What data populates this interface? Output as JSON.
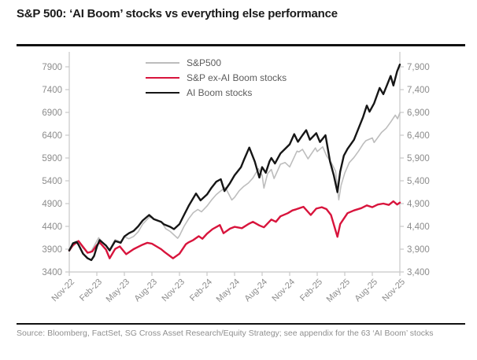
{
  "title": "S&P 500: ‘AI Boom’ stocks vs everything else performance",
  "source": "Source: Bloomberg, FactSet, SG Cross Asset Research/Equity Strategy; see appendix for the 63 ‘AI Boom’ stocks",
  "colors": {
    "rule": "#111111",
    "axis": "#c8c8c8",
    "tick_label": "#8c8c8c",
    "line_gray": "#bdbdbd",
    "line_red": "#d8143c",
    "line_black": "#161616"
  },
  "chart_data": {
    "type": "line",
    "title": "S&P 500: ‘AI Boom’ stocks vs everything else performance",
    "x_unit": "months since Nov-2022",
    "xlim": [
      0,
      36
    ],
    "ylim": [
      3400,
      7900
    ],
    "grid": false,
    "legend_position": "top-center-inside",
    "x_tick_positions": [
      0,
      3,
      6,
      9,
      12,
      15,
      18,
      21,
      24,
      27,
      30,
      33,
      36
    ],
    "x_tick_labels": [
      "Nov-22",
      "Feb-23",
      "May-23",
      "Aug-23",
      "Nov-23",
      "Feb-24",
      "May-24",
      "Aug-24",
      "Nov-24",
      "Feb-25",
      "May-25",
      "Aug-25",
      "Nov-25"
    ],
    "y_ticks_left": [
      "3400",
      "3900",
      "4400",
      "4900",
      "5400",
      "5900",
      "6400",
      "6900",
      "7400",
      "7900"
    ],
    "y_tick_values": [
      3400,
      3900,
      4400,
      4900,
      5400,
      5900,
      6400,
      6900,
      7400,
      7900
    ],
    "y_ticks_right": [
      "3,400",
      "3,900",
      "4,400",
      "4,900",
      "5,400",
      "5,900",
      "6,400",
      "6,900",
      "7,400",
      "7,900"
    ],
    "series": [
      {
        "name": "S&P500",
        "color": "#bdbdbd",
        "width": 1.6,
        "points": [
          [
            0,
            3870
          ],
          [
            0.3,
            3950
          ],
          [
            0.7,
            4020
          ],
          [
            1,
            4080
          ],
          [
            1.5,
            3920
          ],
          [
            2,
            3840
          ],
          [
            2.3,
            3820
          ],
          [
            3,
            4077
          ],
          [
            3.2,
            4150
          ],
          [
            4,
            3970
          ],
          [
            4.4,
            3900
          ],
          [
            5,
            4109
          ],
          [
            5.6,
            4060
          ],
          [
            6,
            4169
          ],
          [
            6.5,
            4130
          ],
          [
            7,
            4180
          ],
          [
            7.5,
            4280
          ],
          [
            8,
            4450
          ],
          [
            8.7,
            4600
          ],
          [
            9,
            4589
          ],
          [
            9.5,
            4530
          ],
          [
            10,
            4508
          ],
          [
            10.5,
            4350
          ],
          [
            11,
            4288
          ],
          [
            11.8,
            4140
          ],
          [
            12,
            4194
          ],
          [
            12.5,
            4400
          ],
          [
            13,
            4568
          ],
          [
            13.5,
            4700
          ],
          [
            14,
            4770
          ],
          [
            14.4,
            4720
          ],
          [
            15,
            4846
          ],
          [
            15.5,
            4980
          ],
          [
            16,
            5096
          ],
          [
            16.5,
            5180
          ],
          [
            17,
            5254
          ],
          [
            17.7,
            4980
          ],
          [
            18,
            5036
          ],
          [
            18.5,
            5180
          ],
          [
            19,
            5278
          ],
          [
            19.5,
            5350
          ],
          [
            20,
            5460
          ],
          [
            20.6,
            5667
          ],
          [
            21,
            5522
          ],
          [
            21.2,
            5240
          ],
          [
            21.6,
            5560
          ],
          [
            22,
            5648
          ],
          [
            22.3,
            5450
          ],
          [
            23,
            5762
          ],
          [
            23.5,
            5800
          ],
          [
            24,
            5705
          ],
          [
            24.8,
            6050
          ],
          [
            25,
            6032
          ],
          [
            25.4,
            6090
          ],
          [
            26,
            5882
          ],
          [
            26.8,
            6120
          ],
          [
            27,
            6041
          ],
          [
            27.6,
            6144
          ],
          [
            28,
            5955
          ],
          [
            28.6,
            5770
          ],
          [
            29,
            5612
          ],
          [
            29.35,
            4983
          ],
          [
            29.6,
            5300
          ],
          [
            30,
            5569
          ],
          [
            30.5,
            5800
          ],
          [
            31,
            5912
          ],
          [
            31.5,
            6050
          ],
          [
            32,
            6205
          ],
          [
            32.3,
            6280
          ],
          [
            33,
            6340
          ],
          [
            33.2,
            6240
          ],
          [
            34,
            6460
          ],
          [
            34.5,
            6550
          ],
          [
            35,
            6688
          ],
          [
            35.5,
            6840
          ],
          [
            35.75,
            6760
          ],
          [
            36,
            6890
          ]
        ]
      },
      {
        "name": "S&P ex-AI Boom stocks",
        "color": "#d8143c",
        "width": 2.4,
        "points": [
          [
            0,
            3870
          ],
          [
            0.4,
            3990
          ],
          [
            1,
            4080
          ],
          [
            1.5,
            3950
          ],
          [
            2,
            3820
          ],
          [
            2.5,
            3850
          ],
          [
            3,
            3990
          ],
          [
            3.3,
            4050
          ],
          [
            4,
            3890
          ],
          [
            4.4,
            3700
          ],
          [
            5,
            3905
          ],
          [
            5.5,
            3960
          ],
          [
            6.2,
            3790
          ],
          [
            7,
            3900
          ],
          [
            7.5,
            3950
          ],
          [
            8,
            4000
          ],
          [
            8.5,
            4040
          ],
          [
            9,
            4020
          ],
          [
            10,
            3900
          ],
          [
            10.4,
            3835
          ],
          [
            11.3,
            3700
          ],
          [
            12,
            3800
          ],
          [
            12.7,
            4010
          ],
          [
            13,
            4050
          ],
          [
            13.5,
            4100
          ],
          [
            14.1,
            4185
          ],
          [
            14.5,
            4130
          ],
          [
            15,
            4240
          ],
          [
            15.6,
            4340
          ],
          [
            16.4,
            4430
          ],
          [
            16.8,
            4250
          ],
          [
            17.5,
            4350
          ],
          [
            18,
            4390
          ],
          [
            18.8,
            4360
          ],
          [
            19.5,
            4450
          ],
          [
            20,
            4500
          ],
          [
            20.7,
            4420
          ],
          [
            21.2,
            4380
          ],
          [
            22,
            4550
          ],
          [
            22.5,
            4500
          ],
          [
            23,
            4620
          ],
          [
            23.8,
            4690
          ],
          [
            24.3,
            4750
          ],
          [
            24.7,
            4775
          ],
          [
            25.5,
            4830
          ],
          [
            26.3,
            4650
          ],
          [
            26.9,
            4790
          ],
          [
            27.5,
            4820
          ],
          [
            28,
            4780
          ],
          [
            28.5,
            4650
          ],
          [
            29.2,
            4170
          ],
          [
            29.5,
            4450
          ],
          [
            30.3,
            4690
          ],
          [
            31,
            4750
          ],
          [
            31.8,
            4800
          ],
          [
            32.4,
            4860
          ],
          [
            33,
            4820
          ],
          [
            33.6,
            4880
          ],
          [
            34.2,
            4900
          ],
          [
            34.8,
            4870
          ],
          [
            35.3,
            4950
          ],
          [
            35.7,
            4880
          ],
          [
            36,
            4920
          ]
        ]
      },
      {
        "name": "AI Boom stocks",
        "color": "#161616",
        "width": 2.4,
        "points": [
          [
            0,
            3870
          ],
          [
            0.4,
            4030
          ],
          [
            0.8,
            4060
          ],
          [
            1,
            4000
          ],
          [
            1.5,
            3800
          ],
          [
            2,
            3700
          ],
          [
            2.4,
            3660
          ],
          [
            2.7,
            3750
          ],
          [
            3,
            3950
          ],
          [
            3.3,
            4100
          ],
          [
            4,
            3980
          ],
          [
            4.4,
            3870
          ],
          [
            5,
            4080
          ],
          [
            5.6,
            4040
          ],
          [
            6,
            4180
          ],
          [
            6.5,
            4250
          ],
          [
            7,
            4300
          ],
          [
            7.5,
            4400
          ],
          [
            8,
            4530
          ],
          [
            8.7,
            4650
          ],
          [
            9.2,
            4560
          ],
          [
            10,
            4500
          ],
          [
            10.3,
            4445
          ],
          [
            11,
            4390
          ],
          [
            11.4,
            4340
          ],
          [
            12,
            4450
          ],
          [
            12.5,
            4650
          ],
          [
            13,
            4850
          ],
          [
            13.8,
            5120
          ],
          [
            14.3,
            4970
          ],
          [
            15,
            5100
          ],
          [
            15.5,
            5250
          ],
          [
            16,
            5380
          ],
          [
            16.5,
            5435
          ],
          [
            16.9,
            5175
          ],
          [
            17.5,
            5350
          ],
          [
            18,
            5520
          ],
          [
            18.7,
            5700
          ],
          [
            19,
            5850
          ],
          [
            19.6,
            6130
          ],
          [
            20.2,
            5820
          ],
          [
            20.7,
            5470
          ],
          [
            21,
            5700
          ],
          [
            21.4,
            5575
          ],
          [
            21.8,
            5820
          ],
          [
            22,
            5900
          ],
          [
            22.4,
            5780
          ],
          [
            23,
            6000
          ],
          [
            23.5,
            6100
          ],
          [
            24,
            6200
          ],
          [
            24.5,
            6425
          ],
          [
            24.9,
            6255
          ],
          [
            25.4,
            6400
          ],
          [
            25.8,
            6510
          ],
          [
            26.2,
            6300
          ],
          [
            26.9,
            6445
          ],
          [
            27.3,
            6250
          ],
          [
            27.9,
            6400
          ],
          [
            28.4,
            5820
          ],
          [
            28.8,
            5525
          ],
          [
            29.2,
            5150
          ],
          [
            29.5,
            5600
          ],
          [
            29.9,
            5950
          ],
          [
            30.3,
            6100
          ],
          [
            31,
            6300
          ],
          [
            31.5,
            6550
          ],
          [
            32,
            6800
          ],
          [
            32.4,
            7050
          ],
          [
            32.7,
            6915
          ],
          [
            33.2,
            7100
          ],
          [
            33.8,
            7437
          ],
          [
            34.2,
            7300
          ],
          [
            34.6,
            7500
          ],
          [
            35,
            7700
          ],
          [
            35.3,
            7490
          ],
          [
            35.7,
            7800
          ],
          [
            36,
            7950
          ]
        ]
      }
    ]
  }
}
